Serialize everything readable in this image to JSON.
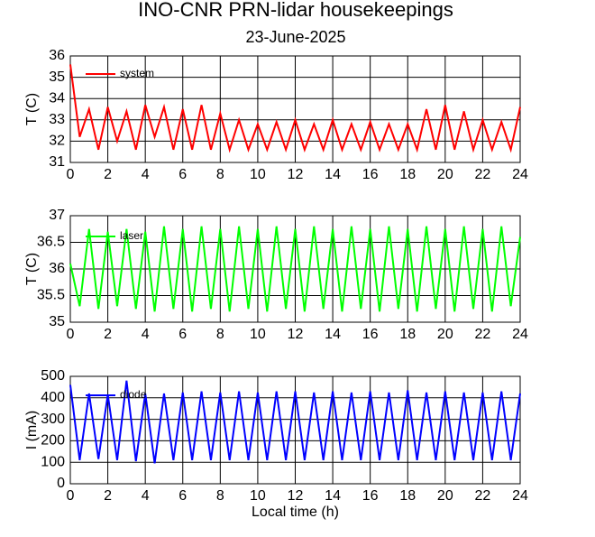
{
  "chart_data": [
    {
      "type": "line",
      "title": "INO-CNR PRN-lidar housekeepings",
      "subtitle": "23-June-2025",
      "y_label": "T (C)",
      "x": [
        0,
        0.5,
        1,
        1.5,
        2,
        2.5,
        3,
        3.5,
        4,
        4.5,
        5,
        5.5,
        6,
        6.5,
        7,
        7.5,
        8,
        8.5,
        9,
        9.5,
        10,
        10.5,
        11,
        11.5,
        12,
        12.5,
        13,
        13.5,
        14,
        14.5,
        15,
        15.5,
        16,
        16.5,
        17,
        17.5,
        18,
        18.5,
        19,
        19.5,
        20,
        20.5,
        21,
        21.5,
        22,
        22.5,
        23,
        23.5,
        24
      ],
      "series": [
        {
          "name": "system",
          "color": "#ff0000",
          "values": [
            35.6,
            32.2,
            33.5,
            31.6,
            33.6,
            32.0,
            33.4,
            31.6,
            33.7,
            32.2,
            33.6,
            31.6,
            33.5,
            31.6,
            33.7,
            31.6,
            33.3,
            31.6,
            33.0,
            31.6,
            32.8,
            31.6,
            32.9,
            31.6,
            33.0,
            31.6,
            32.8,
            31.6,
            33.0,
            31.6,
            32.8,
            31.6,
            32.9,
            31.6,
            32.8,
            31.6,
            32.8,
            31.6,
            33.5,
            31.6,
            33.7,
            31.6,
            33.4,
            31.6,
            33.0,
            31.6,
            32.9,
            31.6,
            33.6
          ]
        }
      ],
      "xlim": [
        0,
        24
      ],
      "xticks": [
        0,
        2,
        4,
        6,
        8,
        10,
        12,
        14,
        16,
        18,
        20,
        22,
        24
      ],
      "ylim": [
        31,
        36
      ],
      "yticks": [
        31,
        32,
        33,
        34,
        35,
        36
      ],
      "grid": true
    },
    {
      "type": "line",
      "y_label": "T (C)",
      "x": [
        0,
        0.5,
        1,
        1.5,
        2,
        2.5,
        3,
        3.5,
        4,
        4.5,
        5,
        5.5,
        6,
        6.5,
        7,
        7.5,
        8,
        8.5,
        9,
        9.5,
        10,
        10.5,
        11,
        11.5,
        12,
        12.5,
        13,
        13.5,
        14,
        14.5,
        15,
        15.5,
        16,
        16.5,
        17,
        17.5,
        18,
        18.5,
        19,
        19.5,
        20,
        20.5,
        21,
        21.5,
        22,
        22.5,
        23,
        23.5,
        24
      ],
      "series": [
        {
          "name": "laser",
          "color": "#00ff00",
          "values": [
            36.1,
            35.3,
            36.75,
            35.25,
            36.7,
            35.3,
            36.75,
            35.25,
            36.7,
            35.2,
            36.8,
            35.25,
            36.75,
            35.2,
            36.8,
            35.25,
            36.75,
            35.2,
            36.8,
            35.25,
            36.75,
            35.2,
            36.8,
            35.25,
            36.75,
            35.2,
            36.8,
            35.25,
            36.75,
            35.2,
            36.8,
            35.25,
            36.75,
            35.2,
            36.8,
            35.25,
            36.75,
            35.2,
            36.8,
            35.25,
            36.75,
            35.2,
            36.8,
            35.25,
            36.75,
            35.2,
            36.8,
            35.3,
            36.6
          ]
        }
      ],
      "xlim": [
        0,
        24
      ],
      "xticks": [
        0,
        2,
        4,
        6,
        8,
        10,
        12,
        14,
        16,
        18,
        20,
        22,
        24
      ],
      "ylim": [
        35,
        37
      ],
      "yticks": [
        35,
        35.5,
        36,
        36.5,
        37
      ],
      "grid": true
    },
    {
      "type": "line",
      "y_label": "I (mA)",
      "x_label": "Local time (h)",
      "x": [
        0,
        0.5,
        1,
        1.5,
        2,
        2.5,
        3,
        3.5,
        4,
        4.5,
        5,
        5.5,
        6,
        6.5,
        7,
        7.5,
        8,
        8.5,
        9,
        9.5,
        10,
        10.5,
        11,
        11.5,
        12,
        12.5,
        13,
        13.5,
        14,
        14.5,
        15,
        15.5,
        16,
        16.5,
        17,
        17.5,
        18,
        18.5,
        19,
        19.5,
        20,
        20.5,
        21,
        21.5,
        22,
        22.5,
        23,
        23.5,
        24
      ],
      "series": [
        {
          "name": "diode",
          "color": "#0000ff",
          "values": [
            460,
            110,
            420,
            115,
            415,
            110,
            480,
            105,
            420,
            95,
            420,
            110,
            425,
            110,
            430,
            110,
            425,
            110,
            430,
            110,
            425,
            110,
            430,
            110,
            430,
            110,
            425,
            110,
            430,
            110,
            425,
            110,
            430,
            110,
            425,
            110,
            435,
            110,
            425,
            110,
            430,
            110,
            425,
            110,
            425,
            110,
            430,
            110,
            420
          ]
        }
      ],
      "xlim": [
        0,
        24
      ],
      "xticks": [
        0,
        2,
        4,
        6,
        8,
        10,
        12,
        14,
        16,
        18,
        20,
        22,
        24
      ],
      "ylim": [
        0,
        500
      ],
      "yticks": [
        0,
        100,
        200,
        300,
        400,
        500
      ],
      "grid": true
    }
  ]
}
